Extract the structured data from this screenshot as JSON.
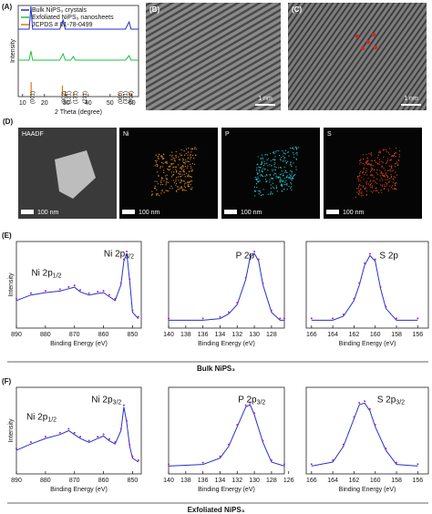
{
  "chart_data": [
    {
      "type": "line",
      "panel": "(A)",
      "x_label": "2 Theta (degree)",
      "y_label": "Intensity",
      "xlim": [
        8,
        63
      ],
      "xticks": [
        10,
        20,
        30,
        40,
        50,
        60
      ],
      "ylim": [
        0,
        1
      ],
      "series": [
        {
          "name": "Bulk NiPS₃ crystals",
          "color": "#1f2fd0",
          "x": [
            8,
            13,
            13.8,
            14.6,
            16,
            27,
            28.5,
            29.5,
            31,
            57,
            58.7,
            59.6,
            63
          ],
          "values": [
            0.74,
            0.74,
            0.99,
            0.74,
            0.74,
            0.74,
            0.84,
            0.74,
            0.74,
            0.74,
            0.82,
            0.74,
            0.74
          ]
        },
        {
          "name": "Exfoliated NiPS₃ nanosheets",
          "color": "#22c040",
          "x": [
            8,
            13,
            13.8,
            14.6,
            16,
            27,
            28.5,
            29.5,
            32,
            33.2,
            34,
            57,
            58.7,
            59.6,
            63
          ],
          "values": [
            0.4,
            0.4,
            0.5,
            0.4,
            0.4,
            0.4,
            0.47,
            0.4,
            0.4,
            0.44,
            0.4,
            0.4,
            0.45,
            0.4,
            0.4
          ]
        },
        {
          "name": "JCPDS # 01-78-0499",
          "color": "#e07a10",
          "style": "sticks",
          "x": [
            13.9,
            28.2,
            29.5,
            33.4,
            37.8,
            54.1,
            56.2,
            58.9
          ],
          "values": [
            0.16,
            0.12,
            0.06,
            0.05,
            0.04,
            0.03,
            0.03,
            0.04
          ]
        }
      ],
      "annotations": [
        {
          "text": "(001)",
          "x": 13.9
        },
        {
          "text": "(002)",
          "x": 28.2
        },
        {
          "text": "(131)",
          "x": 30.4
        },
        {
          "text": "(131)",
          "x": 33.4
        },
        {
          "text": "(211)",
          "x": 37.8
        },
        {
          "text": "(060)",
          "x": 54.1
        },
        {
          "text": "(331)",
          "x": 56.2
        },
        {
          "text": "(004)",
          "x": 58.9
        }
      ]
    },
    {
      "type": "xps",
      "panel": "(E)",
      "y_label": "Intensity",
      "x_label": "Binding Energy (eV)",
      "xlim": [
        890,
        847
      ],
      "xticks": [
        890,
        880,
        870,
        860,
        850
      ],
      "ylim": [
        0,
        1.1
      ],
      "peak_labels": [
        {
          "main": "Ni 2p",
          "sub": "3/2"
        },
        {
          "main": "Ni 2p",
          "sub": "1/2"
        }
      ],
      "series": [
        {
          "color": "#2233cc",
          "x": [
            890,
            885,
            880,
            875,
            872,
            870,
            868,
            865,
            862,
            860,
            858,
            856,
            854,
            853,
            852,
            851,
            850,
            848
          ],
          "values": [
            0.35,
            0.42,
            0.45,
            0.47,
            0.5,
            0.52,
            0.46,
            0.42,
            0.44,
            0.45,
            0.4,
            0.35,
            0.55,
            0.85,
            0.95,
            0.6,
            0.2,
            0.12
          ]
        }
      ]
    },
    {
      "type": "xps",
      "x_label": "Binding Energy (eV)",
      "xlim": [
        140,
        126.5
      ],
      "xticks": [
        140,
        138,
        136,
        134,
        132,
        130,
        128
      ],
      "ylim": [
        0,
        1.1
      ],
      "peak_labels": [
        {
          "main": "P 2p"
        }
      ],
      "series": [
        {
          "color": "#2233cc",
          "x": [
            140,
            136,
            134,
            133,
            132,
            131,
            130.5,
            130,
            129.5,
            129,
            128,
            127,
            126.5
          ],
          "values": [
            0.1,
            0.1,
            0.12,
            0.18,
            0.3,
            0.62,
            0.9,
            0.95,
            0.85,
            0.55,
            0.2,
            0.1,
            0.1
          ]
        }
      ]
    },
    {
      "type": "xps",
      "x_label": "Binding Energy (eV)",
      "xlim": [
        166.5,
        155
      ],
      "xticks": [
        166,
        164,
        162,
        160,
        158,
        156
      ],
      "ylim": [
        0,
        1.1
      ],
      "peak_labels": [
        {
          "main": "S 2p"
        }
      ],
      "series": [
        {
          "color": "#2233cc",
          "x": [
            166,
            164,
            163,
            162,
            161.5,
            161,
            160.5,
            160,
            159.5,
            159,
            158,
            156
          ],
          "values": [
            0.1,
            0.1,
            0.15,
            0.35,
            0.55,
            0.8,
            0.92,
            0.85,
            0.5,
            0.25,
            0.1,
            0.1
          ]
        }
      ]
    },
    {
      "type": "xps",
      "panel": "(F)",
      "y_label": "Intensity",
      "x_label": "Binding Energy (eV)",
      "xlim": [
        890,
        847
      ],
      "xticks": [
        890,
        880,
        870,
        860,
        850
      ],
      "ylim": [
        0,
        1.1
      ],
      "peak_labels": [
        {
          "main": "Ni 2p",
          "sub": "3/2"
        },
        {
          "main": "Ni 2p",
          "sub": "1/2"
        }
      ],
      "series": [
        {
          "color": "#2233cc",
          "x": [
            890,
            885,
            880,
            875,
            872,
            870,
            868,
            865,
            862,
            860,
            858,
            856,
            854,
            853,
            852,
            851,
            850,
            848
          ],
          "values": [
            0.3,
            0.38,
            0.45,
            0.5,
            0.55,
            0.5,
            0.45,
            0.4,
            0.45,
            0.48,
            0.42,
            0.38,
            0.55,
            0.85,
            0.65,
            0.35,
            0.2,
            0.15
          ]
        }
      ]
    },
    {
      "type": "xps",
      "x_label": "Binding Energy (eV)",
      "xlim": [
        140,
        126.5
      ],
      "xticks": [
        140,
        138,
        136,
        134,
        132,
        130,
        128,
        126
      ],
      "ylim": [
        0,
        1.1
      ],
      "peak_labels": [
        {
          "main": "P 2p",
          "sub": "3/2"
        }
      ],
      "series": [
        {
          "color": "#2233cc",
          "x": [
            140,
            136,
            134,
            133,
            132,
            131,
            130.5,
            130,
            129,
            128,
            126.5
          ],
          "values": [
            0.1,
            0.12,
            0.2,
            0.35,
            0.6,
            0.85,
            0.88,
            0.75,
            0.4,
            0.15,
            0.1
          ]
        }
      ]
    },
    {
      "type": "xps",
      "x_label": "Binding Energy (eV)",
      "xlim": [
        166.5,
        155
      ],
      "xticks": [
        166,
        164,
        162,
        160,
        158,
        156
      ],
      "ylim": [
        0,
        1.1
      ],
      "peak_labels": [
        {
          "main": "S 2p",
          "sub": "3/2"
        }
      ],
      "series": [
        {
          "color": "#2233cc",
          "x": [
            166,
            164,
            163,
            162,
            161.5,
            161,
            160.5,
            160,
            159,
            158,
            156
          ],
          "values": [
            0.1,
            0.15,
            0.35,
            0.7,
            0.88,
            0.9,
            0.8,
            0.6,
            0.3,
            0.12,
            0.1
          ]
        }
      ]
    }
  ],
  "tem": [
    {
      "label": "(B)",
      "scale": "1 nm"
    },
    {
      "label": "(C)",
      "scale": "1 nm"
    }
  ],
  "eds": {
    "label": "(D)",
    "maps": [
      {
        "title": "HAADF",
        "scale": "100 nm"
      },
      {
        "title": "Ni",
        "scale": "100 nm"
      },
      {
        "title": "P",
        "scale": "100 nm"
      },
      {
        "title": "S",
        "scale": "100 nm"
      }
    ]
  },
  "captions": {
    "bulk": "Bulk NiPS₃",
    "exfoliated": "Exfoliated NiPS₃"
  }
}
